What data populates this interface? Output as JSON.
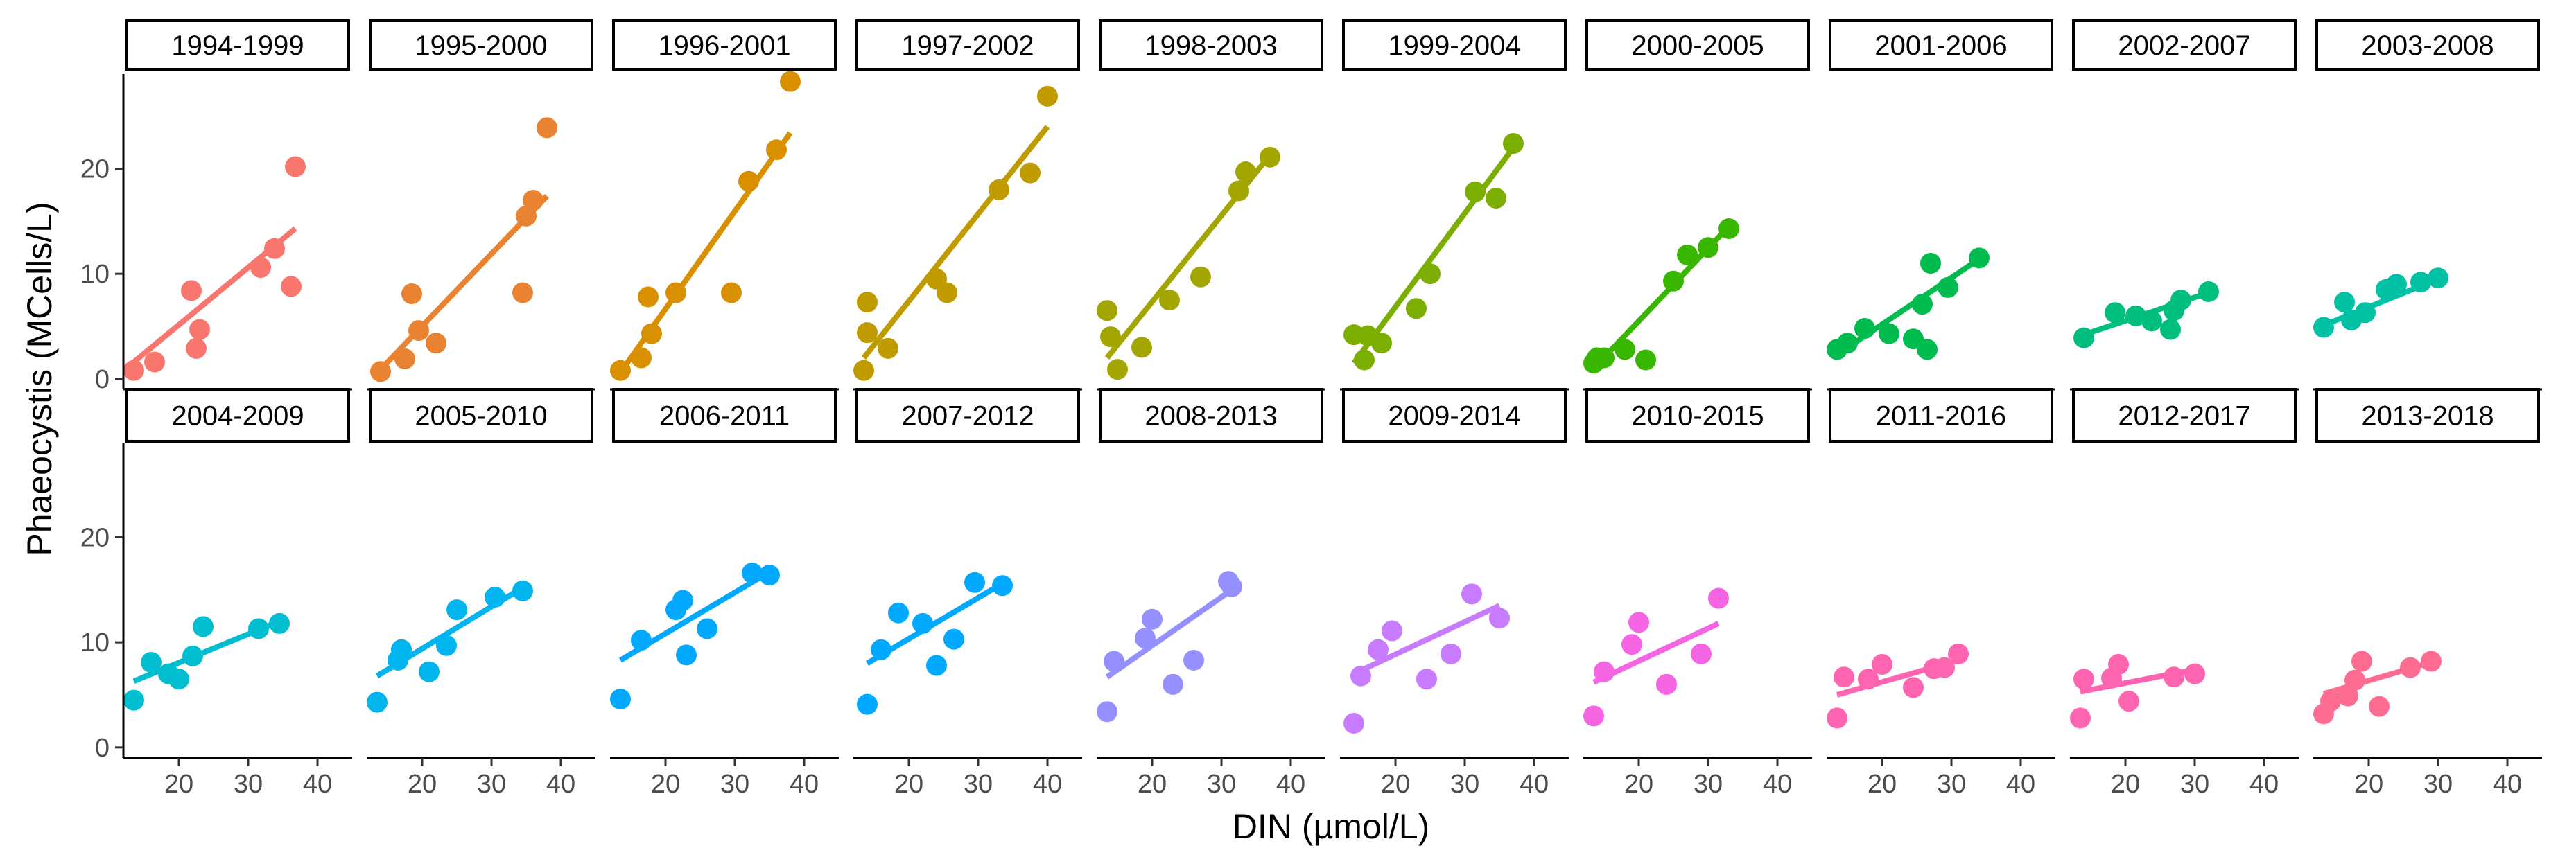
{
  "chart_data": {
    "type": "scatter",
    "xlabel": "DIN (µmol/L)",
    "ylabel": "Phaeocystis (MCells/L)",
    "xlim": [
      12,
      45
    ],
    "ylim": [
      -1,
      29
    ],
    "x_ticks": [
      20,
      30,
      40
    ],
    "y_ticks": [
      0,
      10,
      20
    ],
    "layout": "2 rows x 10 facets",
    "panels": [
      {
        "label": "1994-1999",
        "color": "#F8766D",
        "points": [
          [
            13.5,
            0.8
          ],
          [
            16.5,
            1.6
          ],
          [
            21.8,
            8.4
          ],
          [
            22.5,
            2.9
          ],
          [
            23,
            4.7
          ],
          [
            31.8,
            10.6
          ],
          [
            33.8,
            12.4
          ],
          [
            36.2,
            8.8
          ],
          [
            36.8,
            20.2
          ]
        ],
        "fit": [
          [
            13.5,
            1.6
          ],
          [
            36.8,
            14.3
          ]
        ]
      },
      {
        "label": "1995-2000",
        "color": "#EA8331",
        "points": [
          [
            14,
            0.7
          ],
          [
            17.5,
            1.9
          ],
          [
            18.5,
            8.1
          ],
          [
            19.5,
            4.6
          ],
          [
            22,
            3.4
          ],
          [
            34.5,
            8.2
          ],
          [
            35,
            15.5
          ],
          [
            36,
            17
          ],
          [
            38,
            23.9
          ]
        ],
        "fit": [
          [
            14,
            0.9
          ],
          [
            38,
            17.4
          ]
        ]
      },
      {
        "label": "1996-2001",
        "color": "#D89000",
        "points": [
          [
            13.5,
            0.8
          ],
          [
            16.5,
            2
          ],
          [
            17.5,
            7.8
          ],
          [
            18,
            4.3
          ],
          [
            21.5,
            8.2
          ],
          [
            29.5,
            8.2
          ],
          [
            32,
            18.8
          ],
          [
            36,
            21.8
          ],
          [
            38,
            28.3
          ]
        ],
        "fit": [
          [
            13.5,
            0.6
          ],
          [
            38,
            23.4
          ]
        ]
      },
      {
        "label": "1997-2002",
        "color": "#C09B00",
        "points": [
          [
            13.5,
            0.8
          ],
          [
            14,
            7.3
          ],
          [
            14,
            4.4
          ],
          [
            17,
            2.9
          ],
          [
            24,
            9.5
          ],
          [
            25.5,
            8.2
          ],
          [
            33,
            18
          ],
          [
            37.5,
            19.6
          ],
          [
            40,
            26.9
          ]
        ],
        "fit": [
          [
            13.5,
            2
          ],
          [
            40,
            24
          ]
        ]
      },
      {
        "label": "1998-2003",
        "color": "#A3A500",
        "points": [
          [
            13.5,
            6.5
          ],
          [
            14,
            4
          ],
          [
            15,
            0.9
          ],
          [
            18.5,
            3
          ],
          [
            22.5,
            7.5
          ],
          [
            27,
            9.7
          ],
          [
            32.5,
            17.9
          ],
          [
            33.5,
            19.7
          ],
          [
            37,
            21.1
          ]
        ],
        "fit": [
          [
            13.5,
            2
          ],
          [
            37,
            21.3
          ]
        ]
      },
      {
        "label": "1999-2004",
        "color": "#7CAE00",
        "points": [
          [
            14,
            4.2
          ],
          [
            15.5,
            1.8
          ],
          [
            16,
            4.1
          ],
          [
            18,
            3.4
          ],
          [
            23,
            6.7
          ],
          [
            25,
            10
          ],
          [
            31.5,
            17.8
          ],
          [
            34.5,
            17.2
          ],
          [
            37,
            22.4
          ]
        ],
        "fit": [
          [
            14,
            1.5
          ],
          [
            37,
            22
          ]
        ]
      },
      {
        "label": "2000-2005",
        "color": "#39B600",
        "points": [
          [
            13.5,
            1.5
          ],
          [
            14,
            2
          ],
          [
            15,
            2
          ],
          [
            18,
            2.8
          ],
          [
            21,
            1.8
          ],
          [
            25,
            9.3
          ],
          [
            27,
            11.8
          ],
          [
            30,
            12.5
          ],
          [
            33,
            14.3
          ]
        ],
        "fit": [
          [
            13.5,
            1
          ],
          [
            33,
            14.5
          ]
        ]
      },
      {
        "label": "2001-2006",
        "color": "#00BB4E",
        "points": [
          [
            13.5,
            2.8
          ],
          [
            15,
            3.4
          ],
          [
            17.5,
            4.8
          ],
          [
            21,
            4.3
          ],
          [
            24.5,
            3.8
          ],
          [
            25.8,
            7.1
          ],
          [
            26.5,
            2.8
          ],
          [
            27,
            11
          ],
          [
            29.5,
            8.7
          ],
          [
            34,
            11.5
          ]
        ],
        "fit": [
          [
            13.5,
            2.3
          ],
          [
            34,
            11.4
          ]
        ]
      },
      {
        "label": "2002-2007",
        "color": "#00BF7D",
        "points": [
          [
            14,
            3.9
          ],
          [
            18.5,
            6.3
          ],
          [
            21.5,
            6
          ],
          [
            23.8,
            5.5
          ],
          [
            26.5,
            4.7
          ],
          [
            27,
            6.5
          ],
          [
            28,
            7.5
          ],
          [
            32,
            8.3
          ]
        ],
        "fit": [
          [
            14,
            4.2
          ],
          [
            32,
            8.2
          ]
        ]
      },
      {
        "label": "2003-2008",
        "color": "#00C1A3",
        "points": [
          [
            13.5,
            4.9
          ],
          [
            16.5,
            7.3
          ],
          [
            17.5,
            5.6
          ],
          [
            19.5,
            6.3
          ],
          [
            22.5,
            8.5
          ],
          [
            24,
            9
          ],
          [
            27.5,
            9.2
          ],
          [
            30,
            9.6
          ]
        ],
        "fit": [
          [
            13.5,
            5.1
          ],
          [
            30,
            9.5
          ]
        ]
      },
      {
        "label": "2004-2009",
        "color": "#00BDD0",
        "points": [
          [
            13.5,
            4.5
          ],
          [
            16,
            8.1
          ],
          [
            18.5,
            7
          ],
          [
            20,
            6.5
          ],
          [
            22,
            8.7
          ],
          [
            23.5,
            11.5
          ],
          [
            31.5,
            11.3
          ],
          [
            34.5,
            11.8
          ]
        ],
        "fit": [
          [
            13.5,
            6.3
          ],
          [
            34.5,
            12
          ]
        ]
      },
      {
        "label": "2005-2010",
        "color": "#00B5EE",
        "points": [
          [
            13.5,
            4.3
          ],
          [
            16.5,
            8.3
          ],
          [
            17,
            9.3
          ],
          [
            21,
            7.2
          ],
          [
            23.5,
            9.7
          ],
          [
            25,
            13.1
          ],
          [
            30.5,
            14.3
          ],
          [
            34.5,
            14.9
          ]
        ],
        "fit": [
          [
            13.5,
            6.8
          ],
          [
            34.5,
            15.2
          ]
        ]
      },
      {
        "label": "2006-2011",
        "color": "#00A9FF",
        "points": [
          [
            13.5,
            4.6
          ],
          [
            16.5,
            10.2
          ],
          [
            21.5,
            13.1
          ],
          [
            22.5,
            14
          ],
          [
            23,
            8.8
          ],
          [
            26,
            11.3
          ],
          [
            32.5,
            16.6
          ],
          [
            35,
            16.4
          ]
        ],
        "fit": [
          [
            13.5,
            8.3
          ],
          [
            35,
            16.7
          ]
        ]
      },
      {
        "label": "2007-2012",
        "color": "#00A9FF",
        "points": [
          [
            14,
            4.1
          ],
          [
            16,
            9.3
          ],
          [
            18.5,
            12.8
          ],
          [
            22,
            11.8
          ],
          [
            24,
            7.8
          ],
          [
            26.5,
            10.3
          ],
          [
            29.5,
            15.7
          ],
          [
            33.5,
            15.4
          ]
        ],
        "fit": [
          [
            14,
            8
          ],
          [
            33.5,
            15.6
          ]
        ]
      },
      {
        "label": "2008-2013",
        "color": "#9590FF",
        "points": [
          [
            13.5,
            3.4
          ],
          [
            14.5,
            8.2
          ],
          [
            19,
            10.4
          ],
          [
            20,
            12.2
          ],
          [
            23,
            6
          ],
          [
            26,
            8.3
          ],
          [
            31,
            15.8
          ],
          [
            31.5,
            15.3
          ]
        ],
        "fit": [
          [
            13.5,
            6.7
          ],
          [
            31.5,
            15
          ]
        ]
      },
      {
        "label": "2009-2014",
        "color": "#C77CFF",
        "points": [
          [
            14,
            2.3
          ],
          [
            15,
            6.8
          ],
          [
            17.5,
            9.3
          ],
          [
            19.5,
            11.1
          ],
          [
            24.5,
            6.5
          ],
          [
            28,
            8.9
          ],
          [
            31,
            14.6
          ],
          [
            35,
            12.3
          ]
        ],
        "fit": [
          [
            14,
            7
          ],
          [
            35,
            13.5
          ]
        ]
      },
      {
        "label": "2010-2015",
        "color": "#F564E3",
        "points": [
          [
            13.5,
            3
          ],
          [
            15,
            7.2
          ],
          [
            19,
            9.8
          ],
          [
            20,
            11.9
          ],
          [
            24,
            6
          ],
          [
            29,
            8.9
          ],
          [
            31.5,
            14.2
          ]
        ],
        "fit": [
          [
            13.5,
            6.2
          ],
          [
            31.5,
            11.8
          ]
        ]
      },
      {
        "label": "2011-2016",
        "color": "#FF64B0",
        "points": [
          [
            13.5,
            2.8
          ],
          [
            14.5,
            6.7
          ],
          [
            18,
            6.5
          ],
          [
            20,
            7.9
          ],
          [
            24.5,
            5.7
          ],
          [
            27.5,
            7.5
          ],
          [
            29,
            7.6
          ],
          [
            31,
            8.9
          ]
        ],
        "fit": [
          [
            13.5,
            5
          ],
          [
            31,
            8.3
          ]
        ]
      },
      {
        "label": "2012-2017",
        "color": "#FF64B0",
        "points": [
          [
            13.5,
            2.8
          ],
          [
            14,
            6.5
          ],
          [
            18,
            6.6
          ],
          [
            19,
            7.9
          ],
          [
            20.5,
            4.4
          ],
          [
            27,
            6.7
          ],
          [
            30,
            7
          ]
        ],
        "fit": [
          [
            13.5,
            5.3
          ],
          [
            30,
            7.4
          ]
        ]
      },
      {
        "label": "2013-2018",
        "color": "#FF6C91",
        "points": [
          [
            13.5,
            3.2
          ],
          [
            14.5,
            4.4
          ],
          [
            17,
            4.9
          ],
          [
            18,
            6.4
          ],
          [
            19,
            8.2
          ],
          [
            21.5,
            3.9
          ],
          [
            26,
            7.6
          ],
          [
            29,
            8.2
          ]
        ],
        "fit": [
          [
            13.5,
            5.1
          ],
          [
            29,
            8.1
          ]
        ]
      }
    ]
  }
}
